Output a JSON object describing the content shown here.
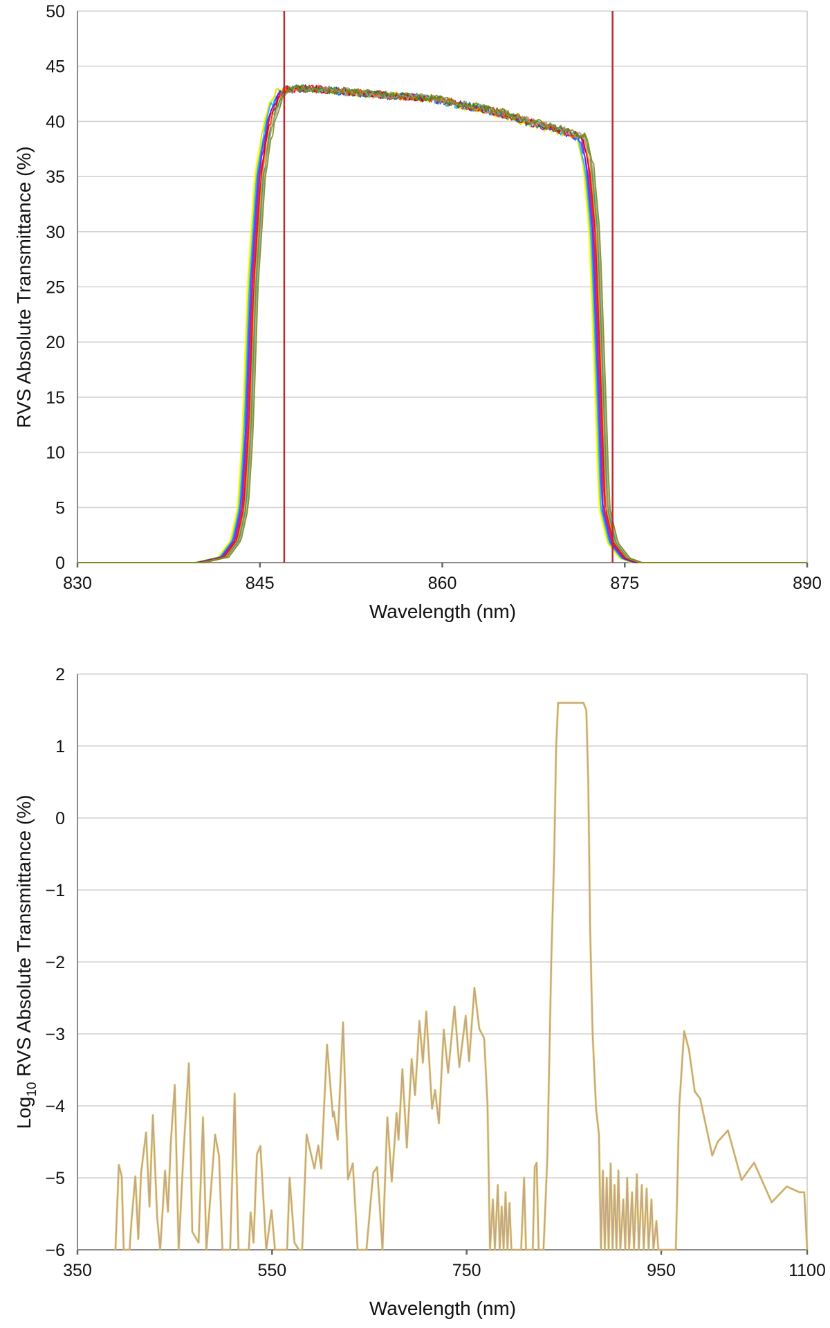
{
  "chart_data": [
    {
      "type": "line",
      "xlabel": "Wavelength (nm)",
      "ylabel": "RVS Absolute Transmittance (%)",
      "xlim": [
        830,
        890
      ],
      "ylim": [
        0,
        50
      ],
      "xticks": [
        "830",
        "845",
        "860",
        "875",
        "890"
      ],
      "xtick_values": [
        830,
        845,
        860,
        875,
        890
      ],
      "yticks": [
        "0",
        "5",
        "10",
        "15",
        "20",
        "25",
        "30",
        "35",
        "40",
        "45",
        "50"
      ],
      "ytick_values": [
        0,
        5,
        10,
        15,
        20,
        25,
        30,
        35,
        40,
        45,
        50
      ],
      "grid": "horizontal",
      "legend": "none",
      "markers": [
        847,
        874
      ],
      "marker_color": "#c0282d",
      "series_colors": [
        "#ffff00",
        "#c8e000",
        "#00b0f0",
        "#2040ff",
        "#8000ff",
        "#ff0000",
        "#c00000",
        "#ff8000",
        "#00a050",
        "#a0a0a0",
        "#808000"
      ],
      "curve": [
        [
          830,
          0
        ],
        [
          840,
          0
        ],
        [
          842,
          0.5
        ],
        [
          843,
          2
        ],
        [
          843.6,
          5
        ],
        [
          844,
          12
        ],
        [
          844.4,
          25
        ],
        [
          845,
          35
        ],
        [
          845.5,
          38.5
        ],
        [
          846,
          41
        ],
        [
          846.8,
          42.8
        ],
        [
          848,
          43.0
        ],
        [
          850,
          42.9
        ],
        [
          852,
          42.7
        ],
        [
          854,
          42.5
        ],
        [
          856,
          42.3
        ],
        [
          858,
          42.2
        ],
        [
          860,
          41.9
        ],
        [
          862,
          41.4
        ],
        [
          864,
          41.0
        ],
        [
          866,
          40.3
        ],
        [
          868,
          39.7
        ],
        [
          870,
          39.1
        ],
        [
          871.5,
          38.5
        ],
        [
          872,
          36
        ],
        [
          872.5,
          30
        ],
        [
          873,
          15
        ],
        [
          873.3,
          5
        ],
        [
          874,
          1.8
        ],
        [
          875,
          0.4
        ],
        [
          876,
          0
        ],
        [
          890,
          0
        ]
      ]
    },
    {
      "type": "line",
      "xlabel": "Wavelength (nm)",
      "ylabel_prefix": "Log",
      "ylabel_sub": "10",
      "ylabel_rest": " RVS Absolute Transmittance (%)",
      "xlim": [
        350,
        1100
      ],
      "ylim": [
        -6,
        2
      ],
      "xticks": [
        "350",
        "550",
        "750",
        "950",
        "1100"
      ],
      "xtick_values": [
        350,
        550,
        750,
        950,
        1100
      ],
      "yticks": [
        "−6",
        "−5",
        "−4",
        "−3",
        "−2",
        "−1",
        "0",
        "1",
        "2"
      ],
      "ytick_values": [
        -6,
        -5,
        -4,
        -3,
        -2,
        -1,
        0,
        1,
        2
      ],
      "grid": "horizontal",
      "legend": "none",
      "line_color": "#c4a68a",
      "curve": [
        [
          389,
          -6
        ],
        [
          392.5,
          -4.82
        ],
        [
          395.5,
          -4.98
        ],
        [
          397.5,
          -6
        ],
        [
          403.5,
          -6
        ],
        [
          405.5,
          -5.6
        ],
        [
          409.5,
          -4.98
        ],
        [
          412.5,
          -5.85
        ],
        [
          415.5,
          -4.92
        ],
        [
          420.5,
          -4.37
        ],
        [
          424,
          -5.4
        ],
        [
          427.5,
          -4.13
        ],
        [
          432,
          -5.56
        ],
        [
          435,
          -6
        ],
        [
          440,
          -4.9
        ],
        [
          443,
          -5.47
        ],
        [
          446,
          -4.5
        ],
        [
          450,
          -3.71
        ],
        [
          454,
          -6
        ],
        [
          459,
          -4.65
        ],
        [
          464.5,
          -3.41
        ],
        [
          468,
          -5.75
        ],
        [
          474.5,
          -5.9
        ],
        [
          479,
          -4.16
        ],
        [
          482.5,
          -6
        ],
        [
          491.5,
          -4.4
        ],
        [
          495.5,
          -4.7
        ],
        [
          499,
          -6
        ],
        [
          507,
          -6
        ],
        [
          511.5,
          -3.83
        ],
        [
          515.5,
          -6
        ],
        [
          526,
          -6
        ],
        [
          528,
          -5.48
        ],
        [
          531,
          -5.9
        ],
        [
          534.5,
          -4.67
        ],
        [
          538,
          -4.56
        ],
        [
          544,
          -6
        ],
        [
          549.5,
          -5.45
        ],
        [
          553,
          -6
        ],
        [
          565.5,
          -6
        ],
        [
          568,
          -5.0
        ],
        [
          573,
          -5.9
        ],
        [
          577.5,
          -6
        ],
        [
          581,
          -6
        ],
        [
          585.5,
          -4.4
        ],
        [
          593.5,
          -4.87
        ],
        [
          597.5,
          -4.55
        ],
        [
          600.5,
          -4.87
        ],
        [
          606.5,
          -3.15
        ],
        [
          612.5,
          -4.15
        ],
        [
          613.5,
          -4.08
        ],
        [
          617.5,
          -4.47
        ],
        [
          623,
          -2.84
        ],
        [
          628,
          -5.02
        ],
        [
          633,
          -4.8
        ],
        [
          638,
          -6
        ],
        [
          647,
          -6
        ],
        [
          654,
          -4.93
        ],
        [
          658,
          -4.85
        ],
        [
          663.5,
          -6
        ],
        [
          668.5,
          -4.16
        ],
        [
          673,
          -5.05
        ],
        [
          678,
          -4.1
        ],
        [
          680,
          -4.47
        ],
        [
          684,
          -3.49
        ],
        [
          688.5,
          -4.58
        ],
        [
          693.5,
          -3.35
        ],
        [
          697,
          -3.85
        ],
        [
          701.5,
          -2.82
        ],
        [
          705,
          -3.4
        ],
        [
          708.5,
          -2.69
        ],
        [
          714.5,
          -4.04
        ],
        [
          717.5,
          -3.78
        ],
        [
          721.5,
          -4.24
        ],
        [
          726.5,
          -2.94
        ],
        [
          731,
          -3.54
        ],
        [
          737.5,
          -2.62
        ],
        [
          742.5,
          -3.46
        ],
        [
          749,
          -2.75
        ],
        [
          752.5,
          -3.38
        ],
        [
          758,
          -2.36
        ],
        [
          763,
          -2.93
        ],
        [
          768,
          -3.06
        ],
        [
          771.5,
          -4.0
        ],
        [
          774,
          -6
        ],
        [
          777,
          -5.3
        ],
        [
          779,
          -6
        ],
        [
          782,
          -5.1
        ],
        [
          784,
          -6
        ],
        [
          786,
          -5.4
        ],
        [
          788,
          -6
        ],
        [
          790,
          -5.2
        ],
        [
          792,
          -6
        ],
        [
          794,
          -5.35
        ],
        [
          796,
          -6
        ],
        [
          806,
          -6
        ],
        [
          809,
          -5.0
        ],
        [
          811,
          -6
        ],
        [
          818,
          -6
        ],
        [
          820,
          -4.85
        ],
        [
          822,
          -4.79
        ],
        [
          824,
          -6
        ],
        [
          829,
          -6
        ],
        [
          833,
          -4.7
        ],
        [
          837,
          -2.0
        ],
        [
          840,
          -0.5
        ],
        [
          842,
          1.0
        ],
        [
          844,
          1.6
        ],
        [
          870,
          1.6
        ],
        [
          873,
          1.5
        ],
        [
          875,
          0.5
        ],
        [
          877,
          -1.6
        ],
        [
          879.5,
          -3.0
        ],
        [
          883,
          -4.04
        ],
        [
          886,
          -4.4
        ],
        [
          888,
          -6
        ],
        [
          890,
          -4.9
        ],
        [
          892,
          -6
        ],
        [
          894,
          -5.0
        ],
        [
          896,
          -6
        ],
        [
          898,
          -4.8
        ],
        [
          900,
          -6
        ],
        [
          902,
          -5.1
        ],
        [
          904,
          -6
        ],
        [
          906,
          -4.9
        ],
        [
          908,
          -6
        ],
        [
          911,
          -5.3
        ],
        [
          913,
          -6
        ],
        [
          915,
          -5.0
        ],
        [
          917,
          -6
        ],
        [
          920,
          -5.2
        ],
        [
          922,
          -6
        ],
        [
          925,
          -4.95
        ],
        [
          927,
          -6
        ],
        [
          930,
          -5.1
        ],
        [
          932,
          -6
        ],
        [
          935,
          -5.15
        ],
        [
          937,
          -6
        ],
        [
          940,
          -5.3
        ],
        [
          942,
          -6
        ],
        [
          945,
          -5.6
        ],
        [
          947,
          -6
        ],
        [
          965,
          -6
        ],
        [
          968.5,
          -4.02
        ],
        [
          973.5,
          -2.96
        ],
        [
          978.5,
          -3.22
        ],
        [
          984.5,
          -3.8
        ],
        [
          990,
          -3.9
        ],
        [
          1002.5,
          -4.69
        ],
        [
          1008,
          -4.5
        ],
        [
          1018.5,
          -4.34
        ],
        [
          1032.5,
          -5.03
        ],
        [
          1045.5,
          -4.79
        ],
        [
          1063.5,
          -5.34
        ],
        [
          1079,
          -5.12
        ],
        [
          1092,
          -5.2
        ],
        [
          1097,
          -5.2
        ],
        [
          1100,
          -6
        ]
      ]
    }
  ]
}
